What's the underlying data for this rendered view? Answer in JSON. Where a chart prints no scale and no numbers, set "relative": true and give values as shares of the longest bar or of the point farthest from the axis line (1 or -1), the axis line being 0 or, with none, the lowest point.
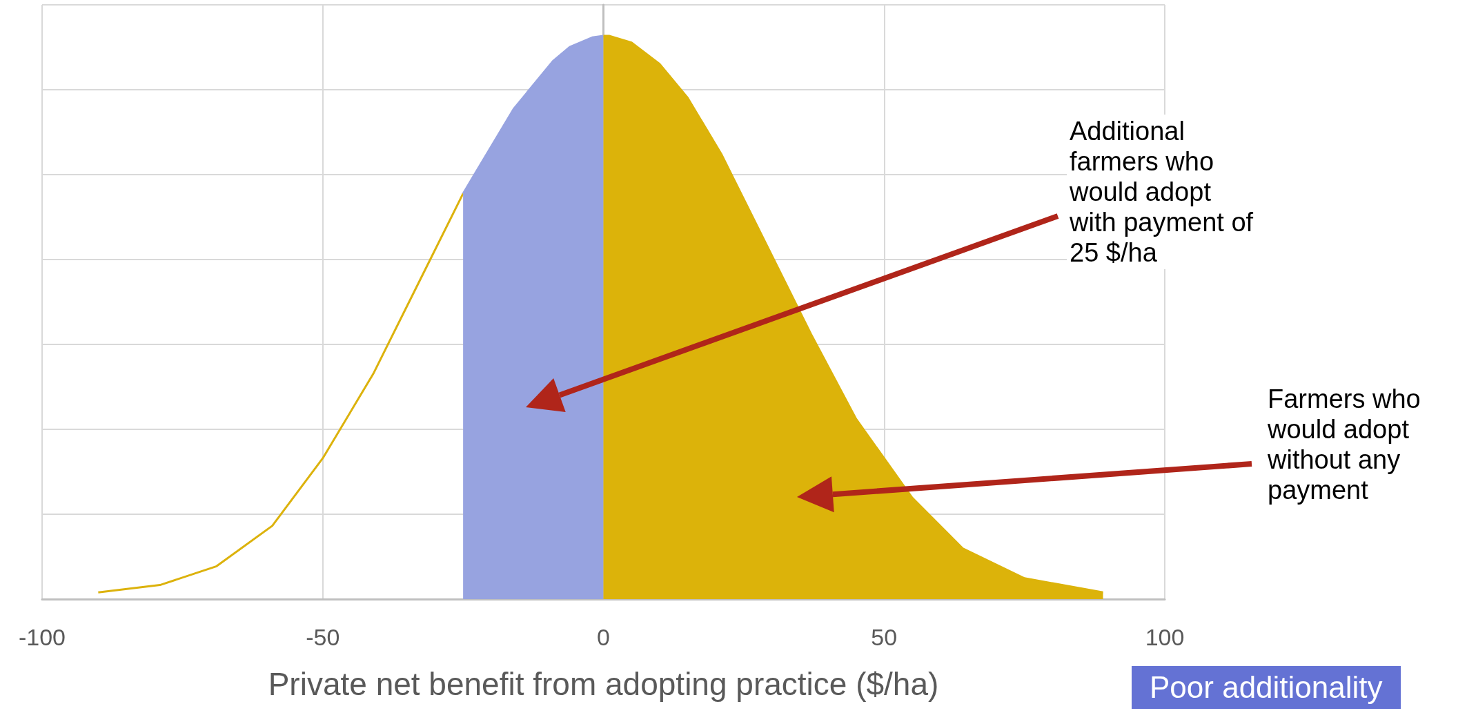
{
  "chart_data": {
    "type": "line",
    "relative": true,
    "xlabel": "Private net benefit from adopting practice ($/ha)",
    "xlim": [
      -100,
      100
    ],
    "xticks": [
      -100,
      -50,
      0,
      50,
      100
    ],
    "grid": true,
    "marker": "none",
    "series": [
      {
        "color": "#dcb20c",
        "x": [
          -90,
          -79,
          -69,
          -59,
          -50,
          -41,
          -33,
          -25
        ],
        "values": [
          0.012,
          0.025,
          0.058,
          0.13,
          0.25,
          0.4,
          0.56,
          0.72
        ]
      },
      {
        "type": "area",
        "color": "#97a3e0",
        "x": [
          -25,
          -16,
          -9,
          -6,
          -2,
          0
        ],
        "values": [
          0.72,
          0.87,
          0.955,
          0.98,
          0.997,
          1.0
        ]
      },
      {
        "type": "area",
        "color": "#dcb30a",
        "x": [
          0,
          1,
          5,
          10,
          15,
          21,
          28,
          37,
          45,
          55,
          64,
          75,
          89
        ],
        "values": [
          1.0,
          1.0,
          0.988,
          0.95,
          0.89,
          0.79,
          0.65,
          0.47,
          0.32,
          0.18,
          0.09,
          0.037,
          0.012
        ]
      }
    ],
    "annotations": [
      "Additional\nfarmers who\nwould adopt\nwith payment of\n25 $/ha",
      "Farmers who\nwould adopt\nwithout any\npayment",
      "Poor additionality"
    ]
  }
}
